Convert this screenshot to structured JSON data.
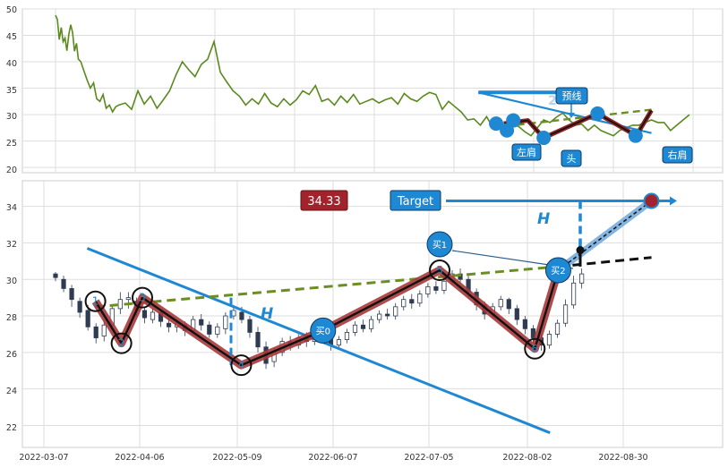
{
  "chart_data": [
    {
      "type": "line",
      "panel": "top",
      "y_ticks": [
        "50",
        "45",
        "40",
        "35",
        "30",
        "25",
        "20"
      ],
      "ylim": [
        19,
        50
      ],
      "xlim": [
        0,
        1
      ],
      "grid": true,
      "series_color": "#5a8a1e",
      "series": [
        {
          "x": [
            0.0,
            0.003,
            0.006,
            0.009,
            0.012,
            0.015,
            0.018,
            0.021,
            0.024,
            0.027,
            0.03,
            0.033,
            0.036,
            0.04,
            0.045,
            0.05,
            0.055,
            0.06,
            0.065,
            0.07,
            0.075,
            0.08,
            0.085,
            0.09,
            0.095,
            0.1,
            0.11,
            0.12,
            0.13,
            0.14,
            0.15,
            0.16,
            0.17,
            0.18,
            0.19,
            0.2,
            0.21,
            0.22,
            0.23,
            0.24,
            0.25,
            0.26,
            0.27,
            0.28,
            0.29,
            0.3,
            0.31,
            0.32,
            0.33,
            0.34,
            0.35,
            0.36,
            0.37,
            0.38,
            0.39,
            0.4,
            0.41,
            0.42,
            0.43,
            0.44,
            0.45,
            0.46,
            0.47,
            0.48,
            0.49,
            0.5,
            0.51,
            0.52,
            0.53,
            0.54,
            0.55,
            0.56,
            0.57,
            0.58,
            0.59,
            0.6,
            0.61,
            0.62,
            0.63,
            0.64,
            0.65,
            0.66,
            0.67,
            0.68,
            0.69,
            0.7,
            0.71,
            0.72,
            0.73,
            0.74,
            0.75,
            0.76,
            0.77,
            0.78,
            0.79,
            0.8,
            0.81,
            0.82,
            0.83,
            0.84,
            0.85,
            0.86,
            0.87,
            0.88,
            0.89,
            0.9,
            0.91,
            0.92,
            0.93,
            0.94,
            0.95,
            0.96,
            0.97,
            0.98,
            0.99,
            1.0
          ],
          "y": [
            48.8,
            48.0,
            44.2,
            46.5,
            43.8,
            44.5,
            42.1,
            45.2,
            47.0,
            45.5,
            42.0,
            43.5,
            40.5,
            40.0,
            38.2,
            36.5,
            35.0,
            36.0,
            33.0,
            32.5,
            33.8,
            31.2,
            31.8,
            30.5,
            31.5,
            31.8,
            32.2,
            31.0,
            34.5,
            32.0,
            33.5,
            31.2,
            32.8,
            34.5,
            37.5,
            40.0,
            38.5,
            37.2,
            39.5,
            40.5,
            43.8,
            38.0,
            36.2,
            34.5,
            33.5,
            31.8,
            33.0,
            32.0,
            34.0,
            32.2,
            31.5,
            33.0,
            31.8,
            32.8,
            34.5,
            33.8,
            35.5,
            32.5,
            33.0,
            31.8,
            33.5,
            32.3,
            33.8,
            32.0,
            32.5,
            33.0,
            32.2,
            32.8,
            33.2,
            32.0,
            34.0,
            33.0,
            32.5,
            33.5,
            34.2,
            33.8,
            31.0,
            32.5,
            31.5,
            30.5,
            29.0,
            29.2,
            28.0,
            29.6,
            27.5,
            28.5,
            27.0,
            28.0,
            27.8,
            26.8,
            26.0,
            27.5,
            29.0,
            28.5,
            29.5,
            30.3,
            29.0,
            28.0,
            28.2,
            27.0,
            28.0,
            27.0,
            26.5,
            26.0,
            27.0,
            27.5,
            28.0,
            28.0,
            28.5,
            29.0,
            28.5,
            28.5,
            27.0,
            28.0,
            29.0,
            30.0
          ]
        }
      ],
      "trend": {
        "points": [
          [
            0.707,
            28.3
          ],
          [
            0.745,
            28.9
          ],
          [
            0.77,
            25.6
          ],
          [
            0.855,
            30.2
          ],
          [
            0.916,
            26.0
          ],
          [
            0.94,
            30.8
          ]
        ],
        "neckline": [
          [
            0.71,
            27.8
          ],
          [
            0.945,
            31.0
          ]
        ],
        "box_line": [
          [
            0.667,
            34.2
          ],
          [
            0.8,
            34.2
          ],
          [
            0.8,
            33.0
          ]
        ],
        "descending_line": [
          [
            0.667,
            34.2
          ],
          [
            0.94,
            26.5
          ]
        ],
        "dots_y": [
          28.3,
          27.0,
          28.9,
          25.6,
          30.2,
          26.0
        ]
      },
      "labels": {
        "left_shoulder": "左肩",
        "head": "头",
        "right_shoulder": "右肩",
        "forecast": "预线",
        "faint_number": "2"
      }
    },
    {
      "type": "candlestick",
      "panel": "bottom",
      "x_ticks": [
        "2022-03-07",
        "2022-04-06",
        "2022-05-09",
        "2022-06-07",
        "2022-07-05",
        "2022-08-02",
        "2022-08-30"
      ],
      "y_ticks": [
        "34",
        "32",
        "30",
        "28",
        "26",
        "24",
        "22"
      ],
      "ylim": [
        20.8,
        35.4
      ],
      "xlim": [
        0,
        1
      ],
      "grid": true,
      "zigzag": {
        "points": [
          [
            0.063,
            28.8
          ],
          [
            0.104,
            26.5
          ],
          [
            0.137,
            29.0
          ],
          [
            0.293,
            25.3
          ],
          [
            0.422,
            27.2
          ],
          [
            0.606,
            30.5
          ],
          [
            0.756,
            26.2
          ],
          [
            0.793,
            30.5
          ],
          [
            0.94,
            34.3
          ]
        ],
        "labels": [
          "1",
          "2",
          "3",
          "4",
          "买0",
          "5",
          "6",
          "买2",
          ""
        ]
      },
      "trendlines": {
        "neckline_dashed": [
          [
            0.063,
            28.5
          ],
          [
            0.793,
            30.7
          ]
        ],
        "neckline_extension": [
          [
            0.793,
            30.7
          ],
          [
            0.94,
            31.2
          ]
        ],
        "descending": [
          [
            0.05,
            31.7
          ],
          [
            0.78,
            21.6
          ]
        ]
      },
      "buy1": {
        "label": "买1",
        "value": 32.0
      },
      "annotations": {
        "price_badge": "34.33",
        "target_label": "Target",
        "target_value": 34.3,
        "h_label": "H",
        "h_mark_value_top": 34.3,
        "h_mark_value_bottom": 31.6
      },
      "candles": [
        [
          30.3,
          30.1,
          30.4,
          29.9
        ],
        [
          30.0,
          29.5,
          30.2,
          29.3
        ],
        [
          29.5,
          28.9,
          29.7,
          28.5
        ],
        [
          28.8,
          28.2,
          29.0,
          27.9
        ],
        [
          28.3,
          27.4,
          28.6,
          27.2
        ],
        [
          27.4,
          26.8,
          27.6,
          26.5
        ],
        [
          26.9,
          27.5,
          27.8,
          26.6
        ],
        [
          27.5,
          28.4,
          28.6,
          27.2
        ],
        [
          28.4,
          28.9,
          29.3,
          28.1
        ],
        [
          28.9,
          29.0,
          29.3,
          28.4
        ],
        [
          28.8,
          28.3,
          29.0,
          28.0
        ],
        [
          28.3,
          27.9,
          28.5,
          27.6
        ],
        [
          27.8,
          28.2,
          28.4,
          27.6
        ],
        [
          28.2,
          27.7,
          28.3,
          27.4
        ],
        [
          27.6,
          27.4,
          27.9,
          27.1
        ],
        [
          27.4,
          27.6,
          27.8,
          27.1
        ],
        [
          27.5,
          27.2,
          27.7,
          26.9
        ],
        [
          27.2,
          27.8,
          28.0,
          27.0
        ],
        [
          27.8,
          27.5,
          28.1,
          27.2
        ],
        [
          27.5,
          27.0,
          27.7,
          26.8
        ],
        [
          27.0,
          27.4,
          27.6,
          26.8
        ],
        [
          27.3,
          28.0,
          28.2,
          27.0
        ],
        [
          28.0,
          28.3,
          28.6,
          27.8
        ],
        [
          28.2,
          27.8,
          28.5,
          27.6
        ],
        [
          27.8,
          27.1,
          28.0,
          26.8
        ],
        [
          27.1,
          26.3,
          27.4,
          26.0
        ],
        [
          26.3,
          25.4,
          26.6,
          25.1
        ],
        [
          25.5,
          26.0,
          26.2,
          25.2
        ],
        [
          26.0,
          26.6,
          26.8,
          25.8
        ],
        [
          26.6,
          26.4,
          26.9,
          26.1
        ],
        [
          26.4,
          26.8,
          27.0,
          26.2
        ],
        [
          26.8,
          26.6,
          27.1,
          26.3
        ],
        [
          26.6,
          27.0,
          27.2,
          26.4
        ],
        [
          27.0,
          26.8,
          27.3,
          26.6
        ],
        [
          26.8,
          26.4,
          27.0,
          26.1
        ],
        [
          26.4,
          26.7,
          26.9,
          26.2
        ],
        [
          26.7,
          27.1,
          27.3,
          26.5
        ],
        [
          27.1,
          27.5,
          27.7,
          26.9
        ],
        [
          27.5,
          27.3,
          27.8,
          27.1
        ],
        [
          27.3,
          27.8,
          28.0,
          27.1
        ],
        [
          27.8,
          28.1,
          28.3,
          27.6
        ],
        [
          28.1,
          28.0,
          28.4,
          27.8
        ],
        [
          28.0,
          28.5,
          28.7,
          27.8
        ],
        [
          28.5,
          28.9,
          29.1,
          28.3
        ],
        [
          28.9,
          28.7,
          29.2,
          28.4
        ],
        [
          28.7,
          29.2,
          29.4,
          28.5
        ],
        [
          29.2,
          29.6,
          29.8,
          29.0
        ],
        [
          29.6,
          29.4,
          29.9,
          29.2
        ],
        [
          29.4,
          29.9,
          30.1,
          29.2
        ],
        [
          29.9,
          30.3,
          30.5,
          29.7
        ],
        [
          30.3,
          30.0,
          30.6,
          29.8
        ],
        [
          30.0,
          29.3,
          30.2,
          29.0
        ],
        [
          29.3,
          28.6,
          29.5,
          28.3
        ],
        [
          28.6,
          28.1,
          28.8,
          27.8
        ],
        [
          28.1,
          28.5,
          28.7,
          27.9
        ],
        [
          28.5,
          28.9,
          29.1,
          28.3
        ],
        [
          28.9,
          28.4,
          29.0,
          28.1
        ],
        [
          28.4,
          27.8,
          28.6,
          27.5
        ],
        [
          27.8,
          27.3,
          28.0,
          27.0
        ],
        [
          27.3,
          26.8,
          27.5,
          26.5
        ],
        [
          26.8,
          26.4,
          27.0,
          26.1
        ],
        [
          26.4,
          27.0,
          27.2,
          26.2
        ],
        [
          27.0,
          27.6,
          27.8,
          26.8
        ],
        [
          27.6,
          28.6,
          28.9,
          27.4
        ],
        [
          28.6,
          29.8,
          30.2,
          28.4
        ],
        [
          29.8,
          30.3,
          30.6,
          29.5
        ]
      ]
    }
  ]
}
